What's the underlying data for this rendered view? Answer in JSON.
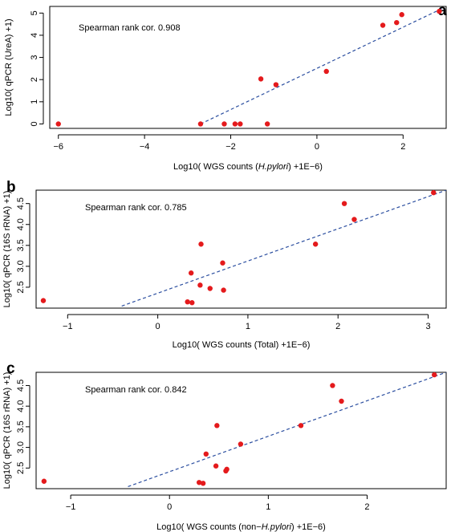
{
  "colors": {
    "point": "#e41a1c",
    "fit_line": "#2c4fa0"
  },
  "chart_data": [
    {
      "type": "scatter",
      "panel_label": "a",
      "annotation": "Spearman rank cor.  0.908",
      "xlabel_parts": [
        "Log10( WGS counts (",
        "H.pylori",
        ") +1E−6)"
      ],
      "ylabel": "Log10( qPCR (UreA) +1)",
      "xlim": [
        -6.2,
        3.0
      ],
      "ylim": [
        -0.2,
        5.3
      ],
      "xticks": [
        -6,
        -4,
        -2,
        0,
        2
      ],
      "yticks": [
        0,
        1,
        2,
        3,
        4,
        5
      ],
      "points": [
        [
          -6.0,
          0.0
        ],
        [
          -2.7,
          0.0
        ],
        [
          -2.15,
          0.0
        ],
        [
          -1.9,
          0.0
        ],
        [
          -1.78,
          0.0
        ],
        [
          -1.15,
          0.0
        ],
        [
          -1.3,
          2.03
        ],
        [
          -0.95,
          1.77
        ],
        [
          0.22,
          2.37
        ],
        [
          1.53,
          4.45
        ],
        [
          1.85,
          4.57
        ],
        [
          1.97,
          4.93
        ],
        [
          2.84,
          5.08
        ]
      ],
      "fit_line": [
        [
          -2.7,
          0.0
        ],
        [
          2.9,
          5.2
        ]
      ]
    },
    {
      "type": "scatter",
      "panel_label": "b",
      "annotation": "Spearman rank cor.  0.785",
      "xlabel_parts": [
        "Log10( WGS counts (Total) +1E−6)",
        "",
        ""
      ],
      "ylabel": "Log10( qPCR (16S rRNA) +1)",
      "xlim": [
        -1.35,
        3.2
      ],
      "ylim": [
        2.0,
        4.82
      ],
      "xticks": [
        -1,
        0,
        1,
        2,
        3
      ],
      "yticks": [
        2.5,
        3.0,
        3.5,
        4.0,
        4.5
      ],
      "ytick_labels": [
        "2.5",
        "3.0",
        "3.5",
        "4.0",
        "4.5"
      ],
      "points": [
        [
          -1.27,
          2.18
        ],
        [
          0.33,
          2.15
        ],
        [
          0.38,
          2.13
        ],
        [
          0.37,
          2.84
        ],
        [
          0.47,
          2.55
        ],
        [
          0.48,
          3.53
        ],
        [
          0.58,
          2.47
        ],
        [
          0.72,
          3.08
        ],
        [
          0.73,
          2.43
        ],
        [
          1.75,
          3.53
        ],
        [
          2.07,
          4.5
        ],
        [
          2.18,
          4.12
        ],
        [
          3.06,
          4.76
        ]
      ],
      "fit_line": [
        [
          -0.4,
          2.05
        ],
        [
          3.2,
          4.82
        ]
      ]
    },
    {
      "type": "scatter",
      "panel_label": "c",
      "annotation": "Spearman rank cor.  0.842",
      "xlabel_parts": [
        "Log10( WGS counts (non−",
        "H.pylori",
        ") +1E−6)"
      ],
      "ylabel": "Log10( qPCR (16S rRNA) +1)",
      "xlim": [
        -1.35,
        2.8
      ],
      "ylim": [
        2.0,
        4.82
      ],
      "xticks": [
        -1,
        0,
        1,
        2
      ],
      "yticks": [
        2.5,
        3.0,
        3.5,
        4.0,
        4.5
      ],
      "ytick_labels": [
        "2.5",
        "3.0",
        "3.5",
        "4.0",
        "4.5"
      ],
      "points": [
        [
          -1.27,
          2.18
        ],
        [
          0.3,
          2.15
        ],
        [
          0.34,
          2.13
        ],
        [
          0.37,
          2.84
        ],
        [
          0.47,
          2.55
        ],
        [
          0.48,
          3.53
        ],
        [
          0.57,
          2.43
        ],
        [
          0.58,
          2.47
        ],
        [
          0.72,
          3.08
        ],
        [
          1.33,
          3.53
        ],
        [
          1.65,
          4.5
        ],
        [
          1.74,
          4.12
        ],
        [
          2.68,
          4.76
        ]
      ],
      "fit_line": [
        [
          -0.42,
          2.05
        ],
        [
          2.8,
          4.82
        ]
      ]
    }
  ]
}
